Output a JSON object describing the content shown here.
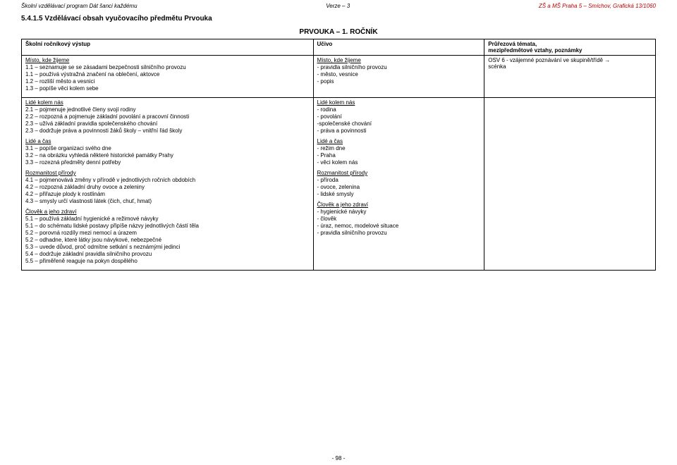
{
  "header": {
    "left": "Školní vzdělávací program Dát šanci každému",
    "center": "Verze – 3",
    "right": "ZŠ a MŠ Praha 5 – Smíchov, Grafická 13/1060"
  },
  "section_number": "5.4.1.5 Vzdělávací obsah vyučovacího předmětu Prvouka",
  "subject_title": "PRVOUKA – 1. ROČNÍK",
  "columns": {
    "c1": "Školní ročníkový výstup",
    "c2": "Učivo",
    "c3a": "Průřezová témata,",
    "c3b": "mezipředmětové vztahy, poznámky"
  },
  "row1": {
    "col1_title": "Místo, kde žijeme",
    "col1_items": [
      "1.1 – seznamuje se se zásadami bezpečnosti silničního provozu",
      "1.1 – používá výstražná značení na oblečení, aktovce",
      "1.2 – rozliší město a vesnici",
      "1.3 – popíše věci kolem sebe"
    ],
    "col2_title": "Místo, kde žijeme",
    "col2_items": [
      "- pravidla silničního provozu",
      "- město, vesnice",
      "- popis"
    ],
    "col3_line1": "OSV 6 - vzájemné poznávání ve skupině/třídě →",
    "col3_line2": "scénka"
  },
  "blocks": [
    {
      "left_title": "Lidé kolem nás",
      "left_items": [
        "2.1 – pojmenuje jednotlivé členy svojí rodiny",
        "2.2 – rozpozná a pojmenuje základní povolání a pracovní činnosti",
        "2.3 – užívá základní pravidla společenského chování",
        "2.3 – dodržuje práva a povinnosti žáků školy – vnitřní řád školy"
      ],
      "right_title": "Lidé kolem nás",
      "right_items": [
        "- rodina",
        "- povolání",
        "-společenské chování",
        "- práva a povinnosti"
      ]
    },
    {
      "left_title": "Lidé a čas",
      "left_items": [
        "3.1 – popíše organizaci svého dne",
        "3.2 – na obrázku vyhledá některé historické památky Prahy",
        "3.3 – rozezná předměty denní potřeby"
      ],
      "right_title": "Lidé a čas",
      "right_items": [
        "- režim dne",
        "- Praha",
        "- věci kolem nás"
      ]
    },
    {
      "left_title": "Rozmanitost přírody",
      "left_items": [
        "4.1 – pojmenovává změny v přírodě v jednotlivých ročních obdobích",
        "4.2 – rozpozná základní druhy ovoce a zeleniny",
        "4.2 – přiřazuje plody k rostlinám",
        "4.3 – smysly určí vlastnosti látek (čich, chuť, hmat)"
      ],
      "right_title": "Rozmanitost přírody",
      "right_items": [
        "- příroda",
        "- ovoce, zelenina",
        "- lidské smysly"
      ]
    },
    {
      "left_title": "Člověk a jeho zdraví",
      "left_items": [
        "5.1 – používá základní hygienické a režimové návyky",
        "5.1 – do schématu lidské postavy připíše názvy jednotlivých částí těla",
        "5.2 – porovná rozdíly mezi nemocí a úrazem",
        "5.2 – odhadne, které látky jsou návykové, nebezpečné",
        "5.3 – uvede důvod, proč odmítne setkání s neznámými jedinci",
        "5.4 – dodržuje základní pravidla silničního provozu",
        "5.5 – přiměřeně reaguje na pokyn dospělého"
      ],
      "right_title": "Člověk a jeho zdraví",
      "right_items": [
        "- hygienické návyky",
        "- člověk",
        "- úraz, nemoc, modelové situace",
        "- pravidla silničního provozu"
      ]
    }
  ],
  "page_number": "- 98 -"
}
